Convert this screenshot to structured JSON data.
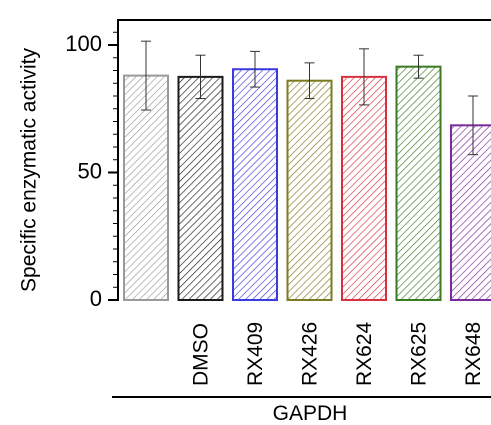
{
  "chart_data": {
    "type": "bar",
    "title": "",
    "xlabel": "",
    "ylabel": "Specific enzymatic activity",
    "group_label": "GAPDH",
    "ylim": [
      0,
      115
    ],
    "yticks": [
      0,
      50,
      100
    ],
    "grid": false,
    "legend": "none",
    "fill_pattern": "diagonal-hatch",
    "categories": [
      "",
      "DMSO",
      "RX409",
      "RX426",
      "RX624",
      "RX625",
      "RX648"
    ],
    "values": [
      88,
      87.5,
      90.5,
      86,
      87.5,
      91.5,
      68.5
    ],
    "error": [
      13.5,
      8.5,
      7,
      7,
      11,
      4.5,
      11.5
    ],
    "colors": [
      "#9a9a9a",
      "#1a1a1a",
      "#3a3ae0",
      "#7a7a20",
      "#d83040",
      "#3a7a20",
      "#7a2a9a"
    ]
  }
}
